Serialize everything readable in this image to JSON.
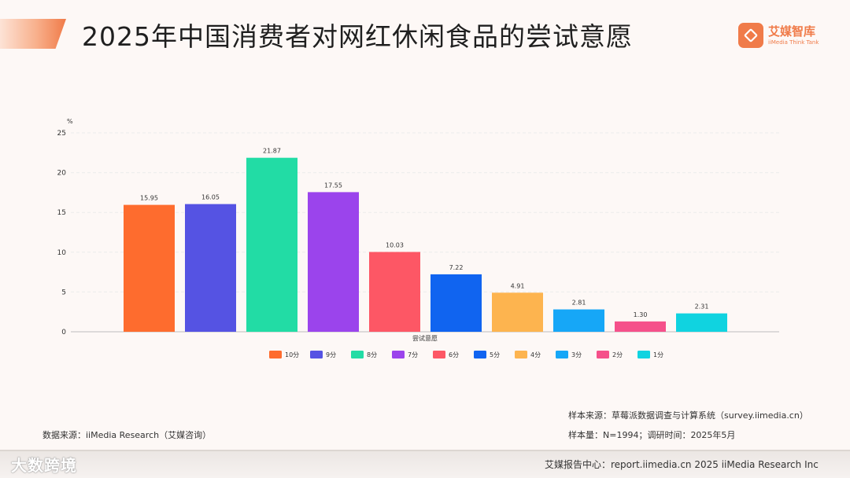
{
  "title": "2025年中国消费者对网红休闲食品的尝试意愿",
  "logo": {
    "name": "艾媒智库",
    "sub": "iiMedia Think Tank"
  },
  "chart_data": {
    "type": "bar",
    "unit": "%",
    "xlabel": "尝试意愿",
    "ylim": [
      0,
      25
    ],
    "yticks": [
      0,
      5,
      10,
      15,
      20,
      25
    ],
    "grid": true,
    "legend_position": "bottom",
    "categories": [
      "10分",
      "9分",
      "8分",
      "7分",
      "6分",
      "5分",
      "4分",
      "3分",
      "2分",
      "1分"
    ],
    "values": [
      15.95,
      16.05,
      21.87,
      17.55,
      10.03,
      7.22,
      4.91,
      2.81,
      1.3,
      2.31
    ],
    "value_labels": [
      "15.95",
      "16.05",
      "21.87",
      "17.55",
      "10.03",
      "7.22",
      "4.91",
      "2.81",
      "1.30",
      "2.31"
    ],
    "colors": [
      "#fe6c2e",
      "#5553e3",
      "#22dca5",
      "#9b44ec",
      "#fd5765",
      "#1064f0",
      "#fdb44f",
      "#16a7f7",
      "#f5508a",
      "#10d3e0"
    ]
  },
  "footer": {
    "source": "数据来源：iiMedia Research（艾媒咨询）",
    "sample_source": "样本来源：草莓派数据调查与计算系统（survey.iimedia.cn）",
    "sample_size": "样本量：N=1994；调研时间：2025年5月",
    "report_center": "艾媒报告中心：report.iimedia.cn  2025 iiMedia Research Inc",
    "watermark": "大数跨境"
  }
}
